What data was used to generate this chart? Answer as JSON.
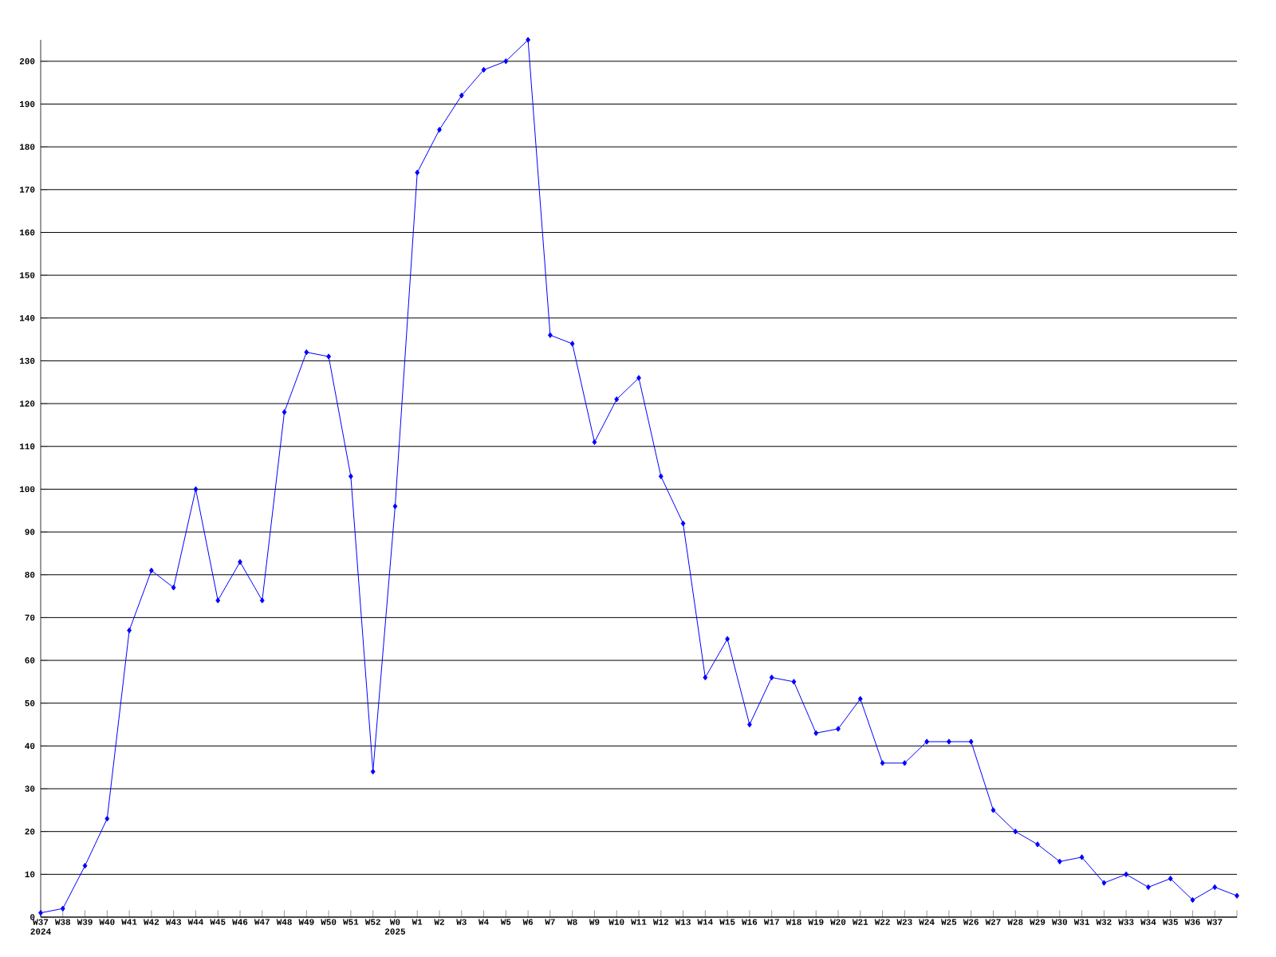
{
  "chart_data": {
    "type": "line",
    "categories": [
      "W37 2024",
      "W38",
      "W39",
      "W40",
      "W41",
      "W42",
      "W43",
      "W44",
      "W45",
      "W46",
      "W47",
      "W48",
      "W49",
      "W50",
      "W51",
      "W52",
      "W0 2025",
      "W1",
      "W2",
      "W3",
      "W4",
      "W5",
      "W6",
      "W7",
      "W8",
      "W9",
      "W10",
      "W11",
      "W12",
      "W13",
      "W14",
      "W15",
      "W16",
      "W17",
      "W18",
      "W19",
      "W20",
      "W21",
      "W22",
      "W23",
      "W24",
      "W25",
      "W26",
      "W27",
      "W28",
      "W29",
      "W30",
      "W31",
      "W32",
      "W33",
      "W34",
      "W35",
      "W36",
      "W37",
      null
    ],
    "values": [
      1,
      2,
      12,
      23,
      67,
      81,
      77,
      100,
      74,
      83,
      74,
      118,
      132,
      131,
      103,
      34,
      96,
      174,
      184,
      192,
      198,
      200,
      205,
      136,
      134,
      111,
      121,
      126,
      103,
      92,
      56,
      65,
      45,
      56,
      55,
      43,
      44,
      51,
      36,
      36,
      41,
      41,
      41,
      25,
      20,
      17,
      13,
      14,
      8,
      10,
      7,
      9,
      4,
      7,
      5
    ],
    "color": "#0000ff",
    "marker": "diamond",
    "ylim": [
      0,
      205
    ],
    "yticks": [
      0,
      10,
      20,
      30,
      40,
      50,
      60,
      70,
      80,
      90,
      100,
      110,
      120,
      130,
      140,
      150,
      160,
      170,
      180,
      190,
      200
    ],
    "grid": "y"
  }
}
